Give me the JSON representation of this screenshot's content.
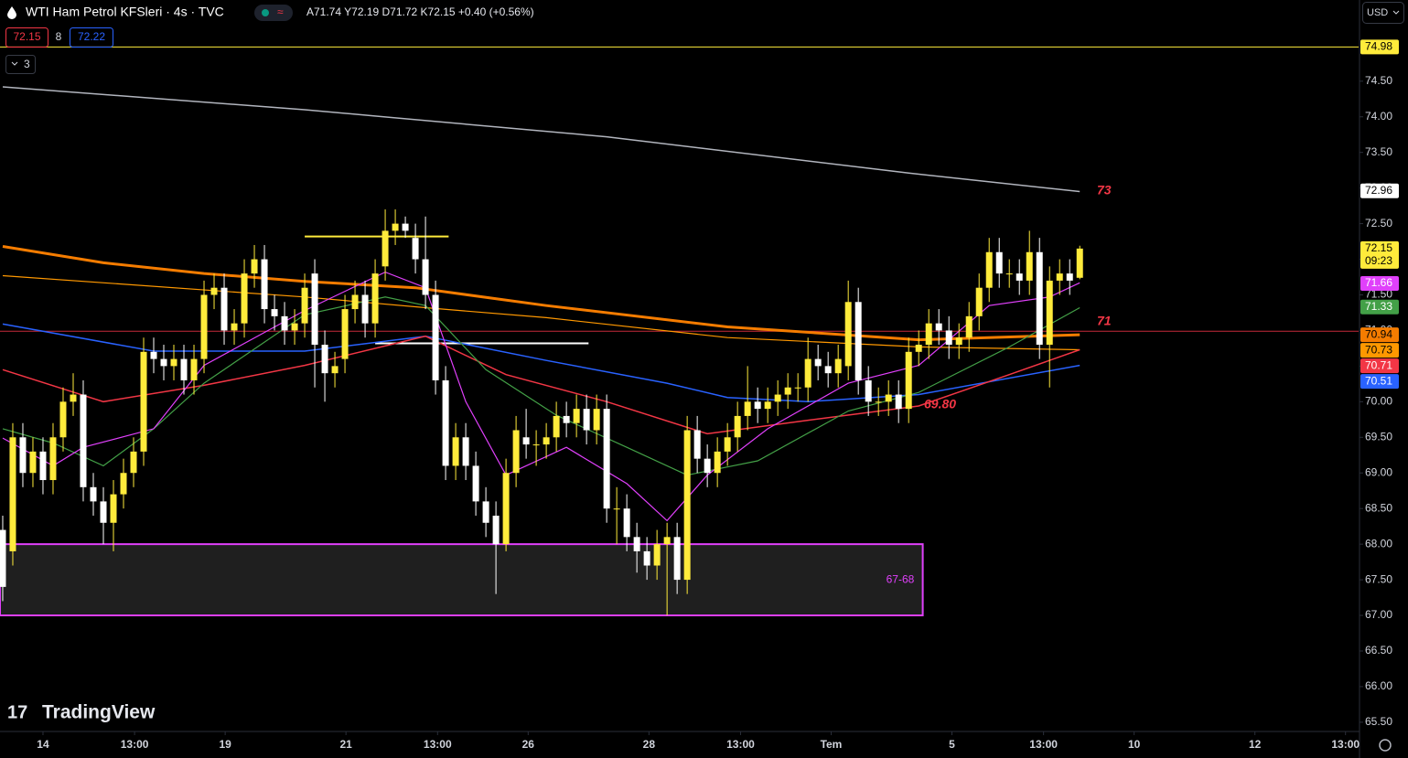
{
  "chart_data": {
    "type": "candlestick",
    "title": "WTI Ham Petrol KFSleri · 4s · TVC",
    "ohlc_legend": "A71.74 Y72.19 D71.72 K72.15 +0.40 (+0.56%)",
    "bid": "72.15",
    "spread": "8",
    "ask": "72.22",
    "indicator_count": "3",
    "currency": "USD",
    "watermark": "TradingView",
    "countdown": "09:23",
    "up_color": "#ffeb3b",
    "down_color": "#ffffff",
    "xlim": [
      -0.27,
      134.7
    ],
    "ylim": [
      65.37,
      75.64
    ],
    "xticks": [
      {
        "value": 4,
        "label": "14"
      },
      {
        "value": 13.1,
        "label": "13:00"
      },
      {
        "value": 22.1,
        "label": "19"
      },
      {
        "value": 34.1,
        "label": "21"
      },
      {
        "value": 43.2,
        "label": "13:00"
      },
      {
        "value": 52.2,
        "label": "26"
      },
      {
        "value": 64.2,
        "label": "28"
      },
      {
        "value": 73.3,
        "label": "13:00"
      },
      {
        "value": 82.3,
        "label": "Tem"
      },
      {
        "value": 94.3,
        "label": "5"
      },
      {
        "value": 103.4,
        "label": "13:00"
      },
      {
        "value": 112.4,
        "label": "10"
      },
      {
        "value": 124.4,
        "label": "12"
      },
      {
        "value": 133.4,
        "label": "13:00"
      }
    ],
    "yticks": [
      {
        "value": 65.5,
        "label": "65.50"
      },
      {
        "value": 66,
        "label": "66.00"
      },
      {
        "value": 66.5,
        "label": "66.50"
      },
      {
        "value": 67,
        "label": "67.00"
      },
      {
        "value": 67.5,
        "label": "67.50"
      },
      {
        "value": 68,
        "label": "68.00"
      },
      {
        "value": 68.5,
        "label": "68.50"
      },
      {
        "value": 69,
        "label": "69.00"
      },
      {
        "value": 69.5,
        "label": "69.50"
      },
      {
        "value": 70,
        "label": "70.00"
      },
      {
        "value": 70.5,
        "label": "70.50"
      },
      {
        "value": 71,
        "label": "71.00"
      },
      {
        "value": 71.5,
        "label": "71.50"
      },
      {
        "value": 72,
        "label": "72.00"
      },
      {
        "value": 72.5,
        "label": "72.50"
      },
      {
        "value": 73,
        "label": "73.00"
      },
      {
        "value": 73.5,
        "label": "73.50"
      },
      {
        "value": 74,
        "label": "74.00"
      },
      {
        "value": 74.5,
        "label": "74.50"
      }
    ],
    "open": [
      68.2,
      67.9,
      69.5,
      69.0,
      69.3,
      68.9,
      69.5,
      70.0,
      70.1,
      68.8,
      68.6,
      68.3,
      68.7,
      69.0,
      69.3,
      70.7,
      70.6,
      70.5,
      70.6,
      70.3,
      70.6,
      71.5,
      71.6,
      71.0,
      71.1,
      71.8,
      72.0,
      71.3,
      71.2,
      71.0,
      71.1,
      71.8,
      70.8,
      70.4,
      70.6,
      71.3,
      71.5,
      71.1,
      71.9,
      72.4,
      72.5,
      72.3,
      72.0,
      71.5,
      70.3,
      69.1,
      69.5,
      69.1,
      68.6,
      68.4,
      68.0,
      69.0,
      69.5,
      69.4,
      69.4,
      69.5,
      69.8,
      69.7,
      69.9,
      69.6,
      69.9,
      68.5,
      68.5,
      68.1,
      67.9,
      67.7,
      68.0,
      68.1,
      67.5,
      69.6,
      69.2,
      69.0,
      69.3,
      69.5,
      69.8,
      70.0,
      69.9,
      70.0,
      70.1,
      70.2,
      70.2,
      70.6,
      70.5,
      70.4,
      70.5,
      71.4,
      70.3,
      70.0,
      70.0,
      70.1,
      69.9,
      70.7,
      70.8,
      71.1,
      71.0,
      70.8,
      70.9,
      71.2,
      71.6,
      72.1,
      71.8,
      71.8,
      71.7,
      72.1,
      70.8,
      71.7,
      71.8,
      71.74
    ],
    "high": [
      68.4,
      69.7,
      69.7,
      69.5,
      69.5,
      69.7,
      70.2,
      70.4,
      70.3,
      69.0,
      68.8,
      68.9,
      69.2,
      69.5,
      70.9,
      70.9,
      70.8,
      70.8,
      70.8,
      70.8,
      71.7,
      71.8,
      71.8,
      71.3,
      72.0,
      72.2,
      72.2,
      71.5,
      71.4,
      71.3,
      71.8,
      72.0,
      71.0,
      70.7,
      71.5,
      71.7,
      71.7,
      72.0,
      72.7,
      72.7,
      72.6,
      72.5,
      72.6,
      71.7,
      70.5,
      69.7,
      69.7,
      69.3,
      68.8,
      68.6,
      69.2,
      69.8,
      69.9,
      69.6,
      69.7,
      70.0,
      70.0,
      70.1,
      70.1,
      70.1,
      70.1,
      68.8,
      68.7,
      68.3,
      68.1,
      68.2,
      68.3,
      68.3,
      69.8,
      69.8,
      69.4,
      69.5,
      69.7,
      70.0,
      70.5,
      70.2,
      70.2,
      70.3,
      70.4,
      70.4,
      70.9,
      70.8,
      70.7,
      70.8,
      71.7,
      71.6,
      70.5,
      70.2,
      70.3,
      70.3,
      70.9,
      71.0,
      71.3,
      71.3,
      71.2,
      71.1,
      71.4,
      71.8,
      72.3,
      72.3,
      72.0,
      72.0,
      72.4,
      72.3,
      71.9,
      72.0,
      72.0,
      72.19
    ],
    "low": [
      67.2,
      67.7,
      68.8,
      68.8,
      68.7,
      68.7,
      69.3,
      69.8,
      68.6,
      68.4,
      68.0,
      67.9,
      68.5,
      68.8,
      69.1,
      70.4,
      70.3,
      70.3,
      70.1,
      70.1,
      70.4,
      71.3,
      70.8,
      70.8,
      70.9,
      71.6,
      71.1,
      71.0,
      70.8,
      70.8,
      70.9,
      70.2,
      70.0,
      70.2,
      70.4,
      71.1,
      70.9,
      70.9,
      71.7,
      72.2,
      72.3,
      71.8,
      71.3,
      70.1,
      68.9,
      68.9,
      68.9,
      68.4,
      68.1,
      67.3,
      67.9,
      68.8,
      69.2,
      69.1,
      69.2,
      69.3,
      69.5,
      69.5,
      69.4,
      69.4,
      68.3,
      68.0,
      67.9,
      67.6,
      67.5,
      67.5,
      67.0,
      67.3,
      67.3,
      69.0,
      68.8,
      68.8,
      69.1,
      69.3,
      69.6,
      69.7,
      69.7,
      69.8,
      69.9,
      70.0,
      70.0,
      70.3,
      70.2,
      70.2,
      70.3,
      70.1,
      69.8,
      69.8,
      69.8,
      69.7,
      69.7,
      70.5,
      70.6,
      70.8,
      70.6,
      70.6,
      70.7,
      71.0,
      71.4,
      71.6,
      71.6,
      71.5,
      71.5,
      70.6,
      70.2,
      71.5,
      71.5,
      71.72
    ],
    "close": [
      67.4,
      69.5,
      69.0,
      69.3,
      68.9,
      69.5,
      70.0,
      70.1,
      68.8,
      68.6,
      68.3,
      68.7,
      69.0,
      69.3,
      70.7,
      70.6,
      70.5,
      70.6,
      70.3,
      70.6,
      71.5,
      71.6,
      71.0,
      71.1,
      71.8,
      72.0,
      71.3,
      71.2,
      71.0,
      71.1,
      71.6,
      70.8,
      70.4,
      70.5,
      71.3,
      71.5,
      71.1,
      71.8,
      72.4,
      72.5,
      72.4,
      72.0,
      71.5,
      70.3,
      69.1,
      69.5,
      69.1,
      68.6,
      68.3,
      68.0,
      69.0,
      69.6,
      69.4,
      69.4,
      69.5,
      69.8,
      69.7,
      69.9,
      69.6,
      69.9,
      68.5,
      68.5,
      68.1,
      67.9,
      67.7,
      68.0,
      68.1,
      67.5,
      69.6,
      69.2,
      69.0,
      69.3,
      69.5,
      69.8,
      70.0,
      69.9,
      70.0,
      70.1,
      70.2,
      70.2,
      70.6,
      70.5,
      70.4,
      70.6,
      71.4,
      70.3,
      70.0,
      70.0,
      70.1,
      69.9,
      70.7,
      70.8,
      71.1,
      71.0,
      70.8,
      70.9,
      71.2,
      71.6,
      72.1,
      71.8,
      71.8,
      71.7,
      72.1,
      70.8,
      71.7,
      71.8,
      71.7,
      72.15
    ],
    "lines": [
      {
        "color": "#b2b5be",
        "width": 1.5,
        "x": [
          0,
          30,
          60,
          90,
          107
        ],
        "values": [
          74.42,
          74.1,
          73.72,
          73.21,
          72.95
        ]
      },
      {
        "color": "#f57c00",
        "width": 3,
        "x": [
          0,
          10,
          20,
          30,
          41,
          54,
          72,
          91,
          107
        ],
        "values": [
          72.18,
          71.95,
          71.8,
          71.69,
          71.6,
          71.35,
          71.05,
          70.87,
          70.94
        ]
      },
      {
        "color": "#ff9800",
        "width": 1.2,
        "x": [
          0,
          30,
          42,
          54,
          72,
          91,
          107
        ],
        "values": [
          71.77,
          71.47,
          71.32,
          71.18,
          70.9,
          70.77,
          70.73
        ]
      },
      {
        "color": "#2962ff",
        "width": 1.5,
        "x": [
          0,
          15,
          30,
          42,
          54,
          66,
          72,
          80,
          91,
          107
        ],
        "values": [
          71.09,
          70.71,
          70.71,
          70.92,
          70.58,
          70.26,
          70.06,
          70.0,
          70.1,
          70.51
        ]
      },
      {
        "color": "#f23645",
        "width": 1.5,
        "x": [
          0,
          10,
          20,
          30,
          42,
          50,
          60,
          70,
          80,
          91,
          100,
          107
        ],
        "values": [
          70.45,
          70.0,
          70.23,
          70.51,
          70.92,
          70.38,
          70.0,
          69.55,
          69.74,
          69.94,
          70.38,
          70.73
        ]
      },
      {
        "color": "#43a047",
        "width": 1.2,
        "x": [
          0,
          5,
          10,
          15,
          20,
          30,
          38,
          42,
          48,
          55,
          62,
          68,
          75,
          84,
          91,
          100,
          107
        ],
        "values": [
          69.62,
          69.42,
          69.1,
          69.62,
          70.26,
          71.22,
          71.47,
          71.35,
          70.45,
          69.81,
          69.36,
          68.97,
          69.17,
          69.87,
          70.13,
          70.77,
          71.32
        ]
      },
      {
        "color": "#e040fb",
        "width": 1.2,
        "x": [
          0,
          5,
          8,
          15,
          20,
          30,
          38,
          42,
          46,
          50,
          56,
          62,
          66,
          70,
          76,
          84,
          91,
          98,
          104,
          107
        ],
        "values": [
          69.49,
          69.1,
          69.36,
          69.62,
          70.51,
          71.28,
          71.82,
          71.6,
          70.0,
          68.97,
          69.36,
          68.85,
          68.33,
          68.97,
          69.62,
          70.26,
          70.51,
          71.35,
          71.47,
          71.67
        ]
      }
    ],
    "levels": [
      {
        "value": 74.98,
        "color": "#ffeb3b"
      },
      {
        "value": 70.99,
        "color": "#c62a3a"
      }
    ],
    "segments": [
      {
        "value": 72.32,
        "x": [
          30,
          44.3
        ],
        "color": "#ffeb3b"
      },
      {
        "value": 70.82,
        "x": [
          37,
          58.2
        ],
        "color": "#ffffff"
      }
    ],
    "zone": {
      "label": "67-68",
      "low": 67,
      "high": 68,
      "x_end": 91.4
    },
    "annotations": [
      {
        "text": "73",
        "color": "#f23645"
      },
      {
        "text": "71",
        "color": "#f23645"
      },
      {
        "text": "69.80",
        "color": "#f23645"
      }
    ],
    "price_tags": [
      {
        "value": 74.98,
        "color": "#ffeb3b",
        "text_color": "#000000"
      },
      {
        "value": 72.96,
        "color": "#ffffff",
        "text_color": "#000000"
      },
      {
        "value": 72.15,
        "color": "#ffeb3b",
        "text_color": "#000000"
      },
      {
        "value": 71.66,
        "color": "#e040fb",
        "text_color": "#ffffff"
      },
      {
        "value": 71.33,
        "color": "#43a047",
        "text_color": "#ffffff"
      },
      {
        "value": 70.94,
        "color": "#f57c00",
        "text_color": "#000000"
      },
      {
        "value": 70.73,
        "color": "#ff9800",
        "text_color": "#000000"
      },
      {
        "value": 70.71,
        "color": "#f23645",
        "text_color": "#ffffff"
      },
      {
        "value": 70.51,
        "color": "#2962ff",
        "text_color": "#ffffff"
      }
    ]
  }
}
